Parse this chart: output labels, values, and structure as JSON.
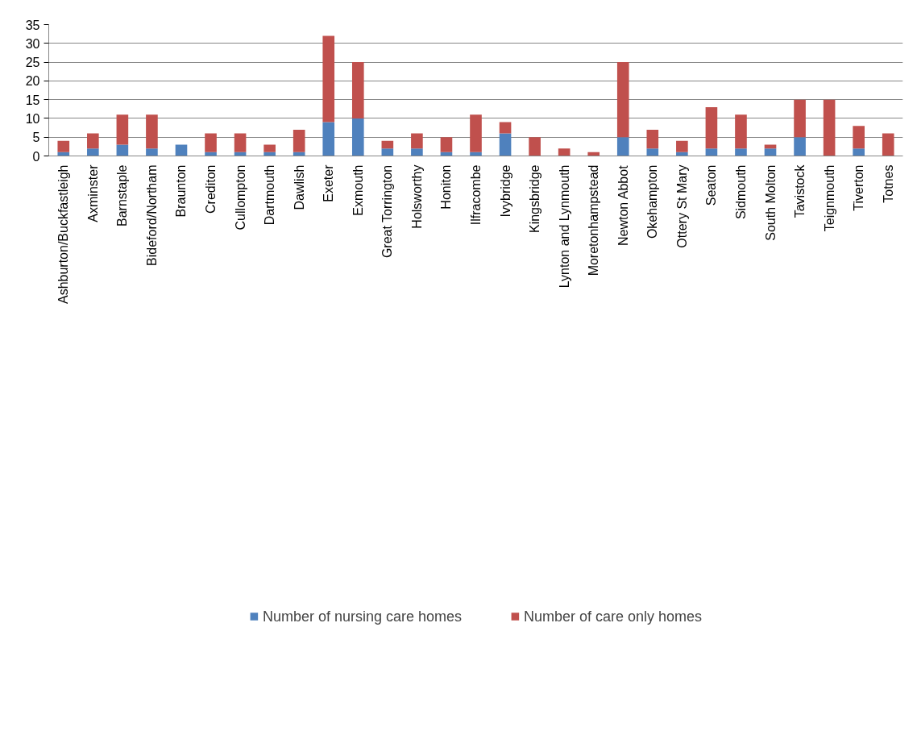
{
  "chart_data": {
    "type": "bar",
    "stacked": true,
    "categories": [
      "Ashburton/Buckfastleigh",
      "Axminster",
      "Barnstaple",
      "Bideford/Northam",
      "Braunton",
      "Crediton",
      "Cullompton",
      "Dartmouth",
      "Dawlish",
      "Exeter",
      "Exmouth",
      "Great Torrington",
      "Holsworthy",
      "Honiton",
      "Ilfracombe",
      "Ivybridge",
      "Kingsbridge",
      "Lynton and Lynmouth",
      "Moretonhampstead",
      "Newton Abbot",
      "Okehampton",
      "Ottery St Mary",
      "Seaton",
      "Sidmouth",
      "South Molton",
      "Tavistock",
      "Teignmouth",
      "Tiverton",
      "Totnes"
    ],
    "series": [
      {
        "name": "Number of nursing care homes",
        "color": "#4f81bd",
        "values": [
          1,
          2,
          3,
          2,
          3,
          1,
          1,
          1,
          1,
          9,
          10,
          2,
          2,
          1,
          1,
          6,
          0,
          0,
          0,
          5,
          2,
          1,
          2,
          2,
          2,
          5,
          0,
          2,
          0
        ]
      },
      {
        "name": "Number of care only homes",
        "color": "#c0504d",
        "values": [
          3,
          4,
          8,
          9,
          0,
          5,
          5,
          2,
          6,
          23,
          15,
          2,
          4,
          4,
          10,
          3,
          5,
          2,
          1,
          20,
          5,
          3,
          11,
          9,
          1,
          10,
          15,
          6,
          6
        ]
      }
    ],
    "ylim": [
      0,
      35
    ],
    "yticks": [
      0,
      5,
      10,
      15,
      20,
      25,
      30,
      35
    ],
    "grid": "y",
    "legend": "bottom"
  }
}
